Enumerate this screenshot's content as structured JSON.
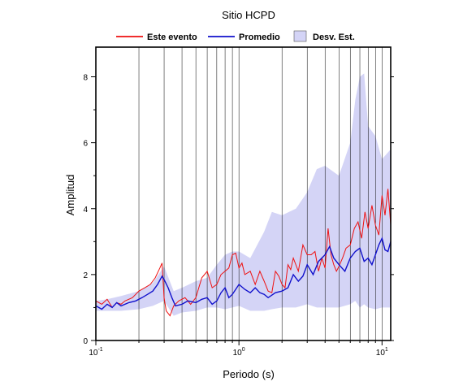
{
  "chart_data": {
    "type": "line",
    "title": "Sitio HCPD",
    "xlabel": "Periodo (s)",
    "ylabel": "Amplitud",
    "xscale": "log",
    "xlim": [
      0.1,
      11.5
    ],
    "ylim": [
      0,
      8.9
    ],
    "x_ticks": [
      {
        "value": 0.1,
        "base": "10",
        "exp": "-1"
      },
      {
        "value": 1,
        "base": "10",
        "exp": "0"
      },
      {
        "value": 10,
        "base": "10",
        "exp": "1"
      }
    ],
    "y_ticks": [
      0,
      2,
      4,
      6,
      8
    ],
    "grid": "vertical log grid",
    "legend_position": "top",
    "legend": [
      {
        "label": "Este evento",
        "kind": "line",
        "color": "#ee1111"
      },
      {
        "label": "Promedio",
        "kind": "line",
        "color": "#1111cc"
      },
      {
        "label": "Desv. Est.",
        "kind": "band",
        "color": "#d4d4f6"
      }
    ],
    "series": [
      {
        "name": "Este evento",
        "color": "#ee1111",
        "x": [
          0.1,
          0.11,
          0.12,
          0.13,
          0.14,
          0.15,
          0.16,
          0.18,
          0.2,
          0.22,
          0.24,
          0.26,
          0.28,
          0.29,
          0.3,
          0.31,
          0.33,
          0.35,
          0.38,
          0.42,
          0.46,
          0.5,
          0.55,
          0.6,
          0.65,
          0.7,
          0.75,
          0.8,
          0.85,
          0.9,
          0.95,
          1.0,
          1.05,
          1.1,
          1.2,
          1.3,
          1.4,
          1.5,
          1.6,
          1.7,
          1.8,
          1.9,
          2.0,
          2.1,
          2.2,
          2.3,
          2.4,
          2.6,
          2.8,
          3.0,
          3.2,
          3.4,
          3.6,
          3.8,
          4.0,
          4.2,
          4.4,
          4.6,
          4.8,
          5.0,
          5.3,
          5.6,
          6.0,
          6.4,
          6.8,
          7.2,
          7.6,
          8.0,
          8.5,
          9.0,
          9.5,
          10.0,
          10.5,
          11.0,
          11.5
        ],
        "y": [
          1.2,
          1.1,
          1.25,
          1.0,
          1.15,
          1.1,
          1.2,
          1.3,
          1.5,
          1.6,
          1.7,
          1.9,
          2.2,
          2.35,
          1.3,
          0.9,
          0.75,
          1.05,
          1.2,
          1.3,
          1.1,
          1.3,
          1.9,
          2.1,
          1.6,
          1.7,
          2.0,
          2.1,
          2.2,
          2.6,
          2.65,
          2.2,
          2.35,
          2.0,
          2.1,
          1.7,
          2.1,
          1.8,
          1.5,
          1.45,
          2.1,
          1.95,
          1.7,
          1.6,
          2.3,
          2.15,
          2.5,
          2.1,
          2.9,
          2.6,
          2.6,
          2.7,
          2.1,
          2.5,
          2.2,
          3.4,
          2.6,
          2.3,
          2.1,
          2.25,
          2.5,
          2.8,
          2.9,
          3.4,
          3.6,
          3.1,
          3.9,
          3.4,
          4.1,
          3.5,
          3.2,
          4.4,
          3.8,
          4.6,
          3.5
        ]
      },
      {
        "name": "Promedio",
        "color": "#1111cc",
        "x": [
          0.1,
          0.11,
          0.12,
          0.13,
          0.14,
          0.15,
          0.17,
          0.19,
          0.21,
          0.23,
          0.25,
          0.27,
          0.29,
          0.3,
          0.32,
          0.34,
          0.36,
          0.4,
          0.44,
          0.5,
          0.55,
          0.6,
          0.65,
          0.7,
          0.75,
          0.8,
          0.85,
          0.9,
          1.0,
          1.1,
          1.2,
          1.3,
          1.4,
          1.5,
          1.6,
          1.8,
          2.0,
          2.2,
          2.4,
          2.6,
          2.8,
          3.0,
          3.3,
          3.6,
          4.0,
          4.3,
          4.6,
          5.0,
          5.5,
          6.0,
          6.5,
          7.0,
          7.5,
          8.0,
          8.5,
          9.0,
          9.5,
          10.0,
          10.5,
          11.0,
          11.5
        ],
        "y": [
          1.05,
          0.95,
          1.1,
          1.0,
          1.15,
          1.05,
          1.15,
          1.2,
          1.3,
          1.4,
          1.5,
          1.7,
          1.95,
          1.85,
          1.6,
          1.3,
          1.05,
          1.1,
          1.2,
          1.15,
          1.25,
          1.3,
          1.1,
          1.2,
          1.45,
          1.6,
          1.3,
          1.4,
          1.7,
          1.55,
          1.45,
          1.6,
          1.45,
          1.4,
          1.3,
          1.45,
          1.5,
          1.6,
          2.0,
          1.8,
          1.95,
          2.3,
          2.0,
          2.4,
          2.6,
          2.85,
          2.5,
          2.3,
          2.1,
          2.5,
          2.7,
          2.8,
          2.4,
          2.5,
          2.3,
          2.6,
          2.9,
          3.1,
          2.75,
          2.7,
          3.0
        ]
      }
    ],
    "std_band": {
      "name": "Desv. Est.",
      "color": "#d4d4f6",
      "x": [
        0.1,
        0.12,
        0.15,
        0.2,
        0.25,
        0.3,
        0.35,
        0.4,
        0.5,
        0.6,
        0.7,
        0.8,
        0.9,
        1.0,
        1.2,
        1.5,
        1.7,
        2.0,
        2.5,
        3.0,
        3.5,
        4.0,
        5.0,
        6.0,
        6.5,
        7.0,
        7.5,
        8.0,
        9.0,
        10.0,
        11.5
      ],
      "upper": [
        1.2,
        1.25,
        1.35,
        1.5,
        1.75,
        2.25,
        1.5,
        1.6,
        1.8,
        1.9,
        2.3,
        2.6,
        2.7,
        2.7,
        2.5,
        3.3,
        3.9,
        3.8,
        4.0,
        4.5,
        5.2,
        5.3,
        5.0,
        6.0,
        7.3,
        8.0,
        8.1,
        6.5,
        6.2,
        5.5,
        5.8
      ],
      "lower": [
        0.9,
        0.9,
        0.9,
        0.95,
        1.05,
        1.2,
        0.75,
        0.85,
        0.9,
        1.0,
        1.0,
        0.95,
        1.0,
        1.05,
        0.9,
        0.9,
        0.95,
        1.0,
        1.0,
        1.1,
        1.0,
        1.0,
        1.0,
        1.1,
        1.2,
        1.0,
        1.1,
        1.0,
        0.95,
        1.0,
        1.0
      ]
    }
  }
}
